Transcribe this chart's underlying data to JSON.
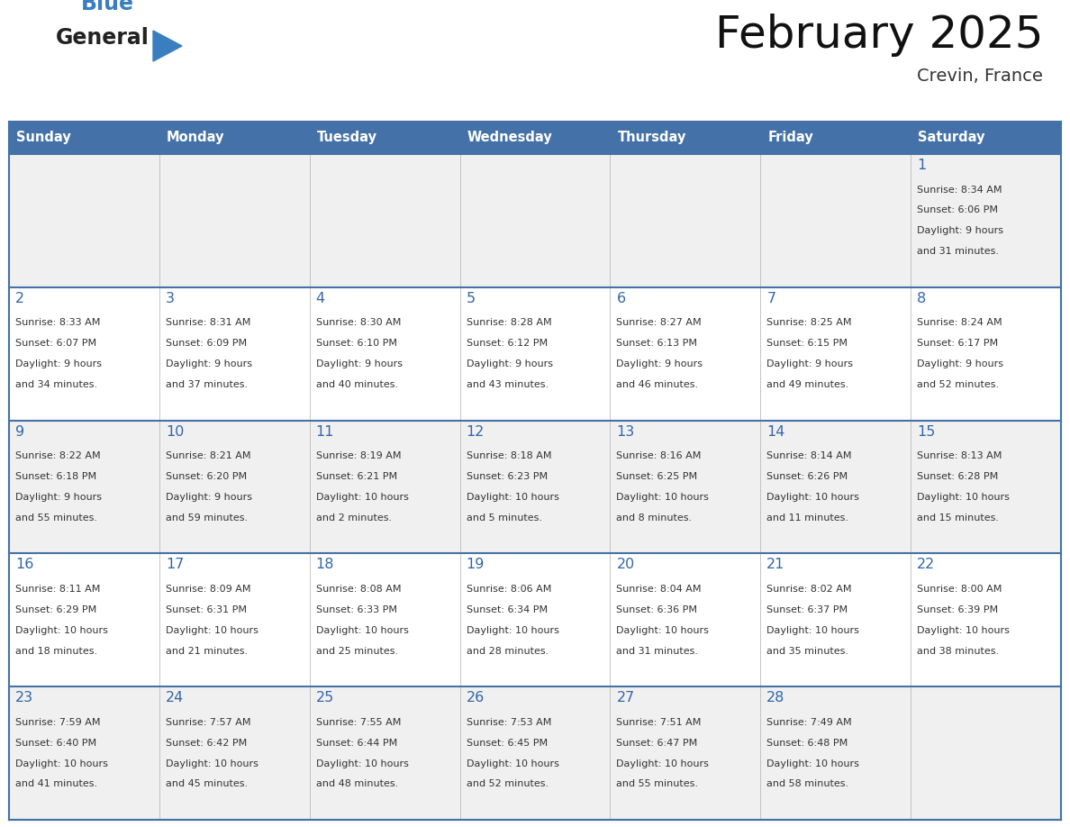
{
  "title": "February 2025",
  "subtitle": "Crevin, France",
  "days_of_week": [
    "Sunday",
    "Monday",
    "Tuesday",
    "Wednesday",
    "Thursday",
    "Friday",
    "Saturday"
  ],
  "header_bg": "#4472a8",
  "header_text_color": "#ffffff",
  "cell_bg_light": "#f0f0f0",
  "cell_bg_white": "#ffffff",
  "day_number_color": "#3366aa",
  "info_text_color": "#333333",
  "border_color": "#4472a8",
  "logo_text_color": "#222222",
  "logo_blue_color": "#3a7ebf",
  "calendar_data": [
    {
      "day": 1,
      "row": 0,
      "col": 6,
      "sunrise": "8:34 AM",
      "sunset": "6:06 PM",
      "daylight_hours": 9,
      "daylight_minutes": 31
    },
    {
      "day": 2,
      "row": 1,
      "col": 0,
      "sunrise": "8:33 AM",
      "sunset": "6:07 PM",
      "daylight_hours": 9,
      "daylight_minutes": 34
    },
    {
      "day": 3,
      "row": 1,
      "col": 1,
      "sunrise": "8:31 AM",
      "sunset": "6:09 PM",
      "daylight_hours": 9,
      "daylight_minutes": 37
    },
    {
      "day": 4,
      "row": 1,
      "col": 2,
      "sunrise": "8:30 AM",
      "sunset": "6:10 PM",
      "daylight_hours": 9,
      "daylight_minutes": 40
    },
    {
      "day": 5,
      "row": 1,
      "col": 3,
      "sunrise": "8:28 AM",
      "sunset": "6:12 PM",
      "daylight_hours": 9,
      "daylight_minutes": 43
    },
    {
      "day": 6,
      "row": 1,
      "col": 4,
      "sunrise": "8:27 AM",
      "sunset": "6:13 PM",
      "daylight_hours": 9,
      "daylight_minutes": 46
    },
    {
      "day": 7,
      "row": 1,
      "col": 5,
      "sunrise": "8:25 AM",
      "sunset": "6:15 PM",
      "daylight_hours": 9,
      "daylight_minutes": 49
    },
    {
      "day": 8,
      "row": 1,
      "col": 6,
      "sunrise": "8:24 AM",
      "sunset": "6:17 PM",
      "daylight_hours": 9,
      "daylight_minutes": 52
    },
    {
      "day": 9,
      "row": 2,
      "col": 0,
      "sunrise": "8:22 AM",
      "sunset": "6:18 PM",
      "daylight_hours": 9,
      "daylight_minutes": 55
    },
    {
      "day": 10,
      "row": 2,
      "col": 1,
      "sunrise": "8:21 AM",
      "sunset": "6:20 PM",
      "daylight_hours": 9,
      "daylight_minutes": 59
    },
    {
      "day": 11,
      "row": 2,
      "col": 2,
      "sunrise": "8:19 AM",
      "sunset": "6:21 PM",
      "daylight_hours": 10,
      "daylight_minutes": 2
    },
    {
      "day": 12,
      "row": 2,
      "col": 3,
      "sunrise": "8:18 AM",
      "sunset": "6:23 PM",
      "daylight_hours": 10,
      "daylight_minutes": 5
    },
    {
      "day": 13,
      "row": 2,
      "col": 4,
      "sunrise": "8:16 AM",
      "sunset": "6:25 PM",
      "daylight_hours": 10,
      "daylight_minutes": 8
    },
    {
      "day": 14,
      "row": 2,
      "col": 5,
      "sunrise": "8:14 AM",
      "sunset": "6:26 PM",
      "daylight_hours": 10,
      "daylight_minutes": 11
    },
    {
      "day": 15,
      "row": 2,
      "col": 6,
      "sunrise": "8:13 AM",
      "sunset": "6:28 PM",
      "daylight_hours": 10,
      "daylight_minutes": 15
    },
    {
      "day": 16,
      "row": 3,
      "col": 0,
      "sunrise": "8:11 AM",
      "sunset": "6:29 PM",
      "daylight_hours": 10,
      "daylight_minutes": 18
    },
    {
      "day": 17,
      "row": 3,
      "col": 1,
      "sunrise": "8:09 AM",
      "sunset": "6:31 PM",
      "daylight_hours": 10,
      "daylight_minutes": 21
    },
    {
      "day": 18,
      "row": 3,
      "col": 2,
      "sunrise": "8:08 AM",
      "sunset": "6:33 PM",
      "daylight_hours": 10,
      "daylight_minutes": 25
    },
    {
      "day": 19,
      "row": 3,
      "col": 3,
      "sunrise": "8:06 AM",
      "sunset": "6:34 PM",
      "daylight_hours": 10,
      "daylight_minutes": 28
    },
    {
      "day": 20,
      "row": 3,
      "col": 4,
      "sunrise": "8:04 AM",
      "sunset": "6:36 PM",
      "daylight_hours": 10,
      "daylight_minutes": 31
    },
    {
      "day": 21,
      "row": 3,
      "col": 5,
      "sunrise": "8:02 AM",
      "sunset": "6:37 PM",
      "daylight_hours": 10,
      "daylight_minutes": 35
    },
    {
      "day": 22,
      "row": 3,
      "col": 6,
      "sunrise": "8:00 AM",
      "sunset": "6:39 PM",
      "daylight_hours": 10,
      "daylight_minutes": 38
    },
    {
      "day": 23,
      "row": 4,
      "col": 0,
      "sunrise": "7:59 AM",
      "sunset": "6:40 PM",
      "daylight_hours": 10,
      "daylight_minutes": 41
    },
    {
      "day": 24,
      "row": 4,
      "col": 1,
      "sunrise": "7:57 AM",
      "sunset": "6:42 PM",
      "daylight_hours": 10,
      "daylight_minutes": 45
    },
    {
      "day": 25,
      "row": 4,
      "col": 2,
      "sunrise": "7:55 AM",
      "sunset": "6:44 PM",
      "daylight_hours": 10,
      "daylight_minutes": 48
    },
    {
      "day": 26,
      "row": 4,
      "col": 3,
      "sunrise": "7:53 AM",
      "sunset": "6:45 PM",
      "daylight_hours": 10,
      "daylight_minutes": 52
    },
    {
      "day": 27,
      "row": 4,
      "col": 4,
      "sunrise": "7:51 AM",
      "sunset": "6:47 PM",
      "daylight_hours": 10,
      "daylight_minutes": 55
    },
    {
      "day": 28,
      "row": 4,
      "col": 5,
      "sunrise": "7:49 AM",
      "sunset": "6:48 PM",
      "daylight_hours": 10,
      "daylight_minutes": 58
    }
  ]
}
